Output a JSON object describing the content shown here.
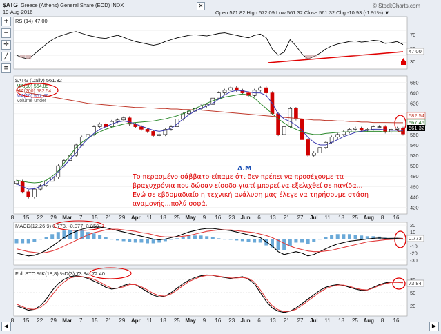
{
  "header": {
    "symbol": "$ATG",
    "name": "Greece (Athens) General Share (EOD) INDX",
    "date": "19-Aug-2016",
    "brand": "© StockCharts.com",
    "quote": "Open 571.82  High 572.09  Low 561.32  Close 561.32  Chg -10.93 (-1.91%) ▼"
  },
  "rsi": {
    "label": "RSI(14) 47.00",
    "levels": [
      "70",
      "50",
      "30"
    ],
    "last_tag": "47.00"
  },
  "price": {
    "legend": [
      "$ATG (Daily) 561.32",
      "MA(50) 564.85",
      "MA(200) 582.54",
      "MA(10) 567.46",
      "Volume undef"
    ],
    "yticks": [
      "660",
      "640",
      "620",
      "600",
      "580",
      "560",
      "540",
      "520",
      "500",
      "480",
      "460",
      "440",
      "420"
    ],
    "tags": [
      "582.54",
      "567.46",
      "561.32"
    ]
  },
  "macd": {
    "label": "MACD(12,26,9) 0.773, -0.077, 0.850",
    "yticks": [
      "20",
      "10",
      "0",
      "-10",
      "-20",
      "-30"
    ],
    "tag": "0.773"
  },
  "sto": {
    "label": "Full STO %K(18,8) %D(3) 73.84, 72.40",
    "yticks": [
      "80",
      "50",
      "20"
    ],
    "tag": "73.84"
  },
  "xaxis": [
    "8",
    "15",
    "22",
    "29",
    "Mar",
    "7",
    "15",
    "21",
    "29",
    "Apr",
    "11",
    "18",
    "25",
    "May",
    "9",
    "16",
    "23",
    "Jun",
    "6",
    "13",
    "21",
    "27",
    "Jul",
    "11",
    "18",
    "25",
    "Aug",
    "8",
    "16"
  ],
  "annotation": {
    "signature": "Δ.Μ",
    "lines": [
      "Το περασμένο σάββατο είπαμε ότι δεν πρέπει να προσέχουμε τα",
      "βραχυχρόνια που δώσαν είσοδο γιατί μπορεί να εξελιχθεί σε παγίδα...",
      "Ενώ σε εβδομαδιαίο η τεχνική ανάλυση μας έλεγε να τηρήσουμε στάση",
      "αναμονής...πολύ σοφά."
    ]
  },
  "chart_data": [
    {
      "type": "candlestick",
      "title": "$ATG (Daily) 561.32",
      "ylim": [
        410,
        670
      ],
      "series": [
        {
          "name": "$ATG (Daily)",
          "values": [
            470,
            450,
            440,
            455,
            462,
            470,
            478,
            500,
            510,
            520,
            540,
            555,
            560,
            575,
            580,
            575,
            585,
            588,
            592,
            580,
            575,
            570,
            566,
            558,
            560,
            570,
            575,
            590,
            600,
            605,
            610,
            615,
            618,
            630,
            640,
            645,
            650,
            645,
            640,
            635,
            645,
            650,
            640,
            600,
            560,
            575,
            610,
            590,
            550,
            520,
            525,
            535,
            545,
            555,
            560,
            565,
            570,
            572,
            568,
            570,
            575,
            575,
            565,
            570,
            572,
            561
          ]
        },
        {
          "name": "MA(50)",
          "values": [
            472,
            470,
            468,
            467,
            468,
            472,
            480,
            490,
            505,
            520,
            535,
            545,
            553,
            560,
            565,
            570,
            574,
            577,
            580,
            582,
            583,
            584,
            585,
            586,
            588,
            590,
            593,
            596,
            600,
            605,
            610,
            615,
            620,
            625,
            628,
            632,
            634,
            636,
            638,
            636,
            630,
            620,
            610,
            600,
            590,
            582,
            575,
            570,
            565,
            562,
            560,
            560,
            562,
            563,
            564,
            565,
            565,
            565,
            566,
            566,
            566,
            566,
            565,
            565,
            565,
            564.85
          ]
        },
        {
          "name": "MA(200)",
          "values": [
            645,
            642,
            640,
            638,
            636,
            634,
            632,
            630,
            628,
            626,
            624,
            622,
            620,
            619,
            618,
            617,
            616,
            615,
            614,
            613,
            612,
            612,
            611,
            611,
            610,
            610,
            609,
            609,
            608,
            608,
            607,
            607,
            606,
            605,
            604,
            603,
            602,
            601,
            600,
            599,
            598,
            597,
            596,
            595,
            594,
            593,
            592,
            591,
            590,
            589,
            588,
            588,
            587,
            587,
            586,
            586,
            585,
            585,
            584,
            584,
            583,
            583,
            583,
            582.8,
            582.6,
            582.54
          ]
        },
        {
          "name": "MA(10)",
          "values": [
            465,
            460,
            455,
            456,
            460,
            466,
            475,
            488,
            500,
            512,
            525,
            540,
            552,
            562,
            570,
            575,
            580,
            584,
            586,
            584,
            580,
            576,
            572,
            568,
            566,
            568,
            572,
            580,
            590,
            598,
            605,
            610,
            615,
            620,
            628,
            636,
            642,
            645,
            644,
            642,
            640,
            640,
            635,
            620,
            600,
            590,
            585,
            578,
            568,
            555,
            545,
            540,
            540,
            545,
            550,
            556,
            560,
            564,
            566,
            568,
            570,
            570,
            569,
            568,
            568,
            567.46
          ]
        }
      ]
    },
    {
      "type": "line",
      "title": "RSI(14) 47.00",
      "ylim": [
        10,
        90
      ],
      "series": [
        {
          "name": "RSI(14)",
          "values": [
            30,
            26,
            24,
            32,
            40,
            48,
            55,
            60,
            63,
            66,
            68,
            65,
            62,
            60,
            58,
            57,
            60,
            62,
            59,
            55,
            52,
            50,
            48,
            46,
            48,
            52,
            55,
            58,
            60,
            62,
            63,
            62,
            61,
            63,
            65,
            66,
            64,
            62,
            60,
            58,
            62,
            64,
            58,
            40,
            30,
            35,
            55,
            45,
            32,
            24,
            28,
            33,
            40,
            45,
            48,
            50,
            52,
            53,
            51,
            52,
            54,
            53,
            49,
            50,
            52,
            47
          ]
        }
      ]
    },
    {
      "type": "line",
      "title": "MACD(12,26,9) 0.773, -0.077, 0.850",
      "ylim": [
        -35,
        22
      ],
      "series": [
        {
          "name": "MACD",
          "values": [
            -20,
            -22,
            -24,
            -23,
            -20,
            -16,
            -10,
            -4,
            2,
            7,
            11,
            14,
            16,
            17,
            17,
            16,
            14,
            12,
            10,
            8,
            6,
            4,
            2,
            0,
            -1,
            0,
            2,
            4,
            7,
            10,
            12,
            14,
            15,
            15,
            14,
            13,
            12,
            10,
            8,
            6,
            4,
            2,
            -4,
            -10,
            -18,
            -22,
            -20,
            -18,
            -20,
            -24,
            -22,
            -18,
            -14,
            -10,
            -7,
            -5,
            -3,
            -2,
            -1,
            0,
            1,
            1.5,
            1,
            1,
            1.2,
            0.773
          ]
        },
        {
          "name": "Signal",
          "values": [
            -14,
            -16,
            -18,
            -19,
            -20,
            -19,
            -17,
            -14,
            -10,
            -6,
            -2,
            2,
            6,
            9,
            11,
            13,
            14,
            14,
            13,
            12,
            11,
            9,
            8,
            6,
            4,
            3,
            3,
            3,
            4,
            5,
            7,
            9,
            11,
            12,
            13,
            13,
            13,
            12,
            11,
            10,
            9,
            7,
            5,
            2,
            -2,
            -6,
            -10,
            -13,
            -15,
            -17,
            -18,
            -18,
            -17,
            -16,
            -14,
            -12,
            -10,
            -8,
            -6,
            -4,
            -3,
            -2,
            -1,
            -0.5,
            0,
            0.85
          ]
        }
      ]
    },
    {
      "type": "line",
      "title": "Full STO %K(18,8) %D(3) 73.84, 72.40",
      "ylim": [
        0,
        100
      ],
      "series": [
        {
          "name": "%K",
          "values": [
            20,
            15,
            10,
            12,
            20,
            35,
            55,
            70,
            80,
            86,
            88,
            86,
            82,
            76,
            70,
            62,
            58,
            60,
            66,
            70,
            68,
            60,
            52,
            44,
            40,
            42,
            50,
            60,
            70,
            78,
            84,
            88,
            90,
            89,
            86,
            84,
            82,
            84,
            86,
            80,
            70,
            50,
            30,
            15,
            8,
            5,
            8,
            15,
            25,
            35,
            45,
            55,
            62,
            66,
            68,
            66,
            62,
            58,
            55,
            56,
            62,
            68,
            72,
            74,
            74,
            73.84
          ]
        },
        {
          "name": "%D",
          "values": [
            24,
            18,
            13,
            12,
            16,
            27,
            45,
            62,
            74,
            83,
            86,
            86,
            84,
            80,
            74,
            66,
            60,
            60,
            63,
            68,
            68,
            63,
            56,
            48,
            43,
            42,
            47,
            56,
            66,
            75,
            81,
            86,
            89,
            89,
            87,
            85,
            83,
            83,
            84,
            82,
            74,
            56,
            36,
            20,
            11,
            7,
            8,
            12,
            21,
            31,
            41,
            51,
            59,
            64,
            67,
            67,
            64,
            60,
            57,
            56,
            60,
            66,
            70,
            73,
            73,
            72.4
          ]
        }
      ]
    }
  ]
}
